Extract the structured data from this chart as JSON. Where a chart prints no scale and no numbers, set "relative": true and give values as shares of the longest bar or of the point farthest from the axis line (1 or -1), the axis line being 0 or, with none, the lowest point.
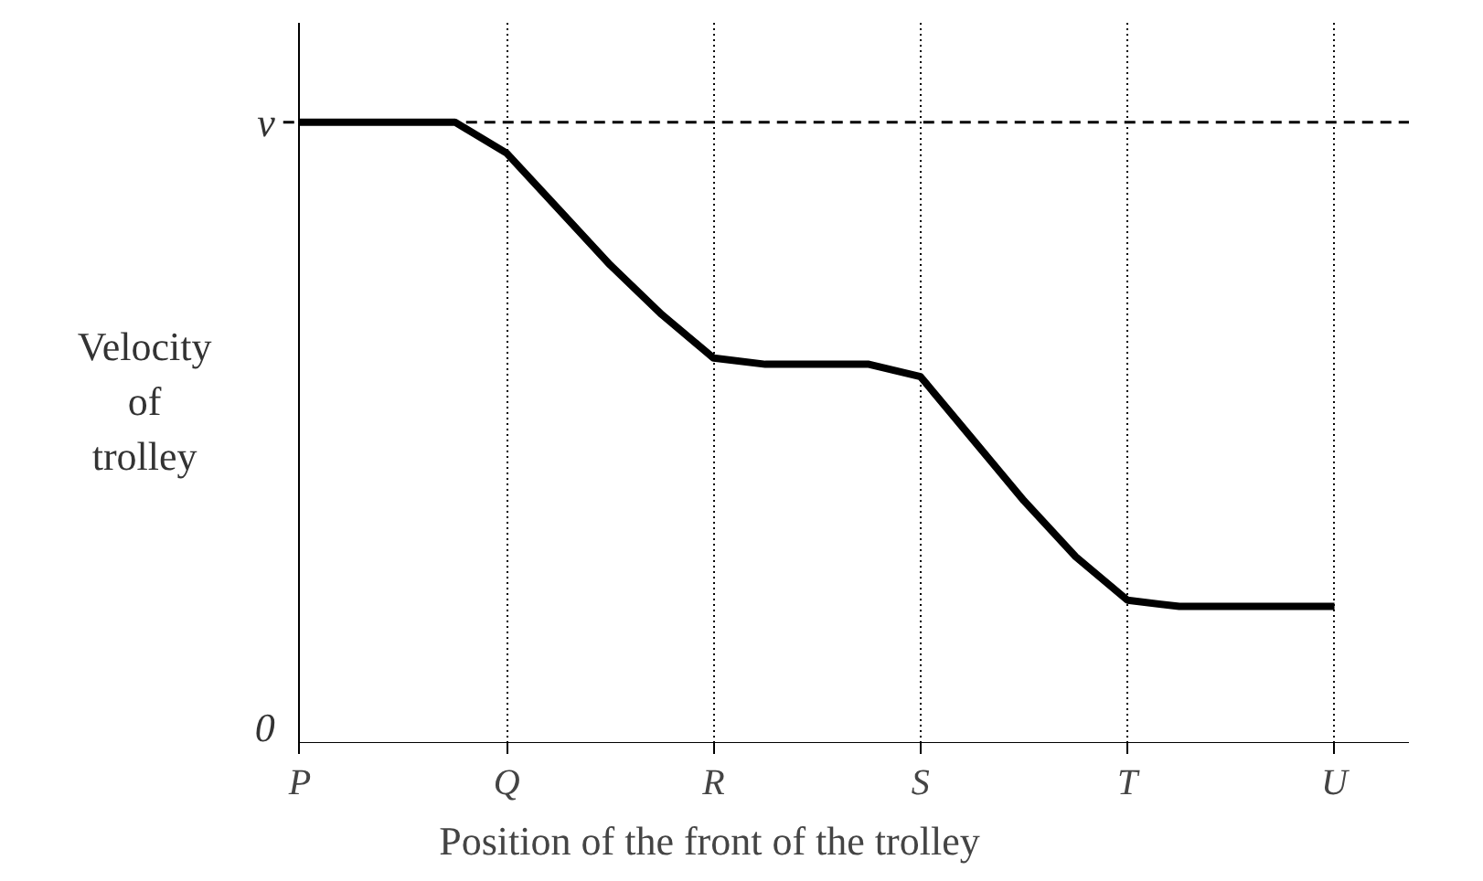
{
  "chart_data": {
    "type": "line",
    "relative": true,
    "xlabel": "Position of the front of the trolley",
    "ylabel": "Velocity of trolley",
    "categories": [
      "P",
      null,
      null,
      null,
      "Q",
      null,
      null,
      null,
      "R",
      null,
      null,
      null,
      "S",
      null,
      null,
      null,
      "T",
      null,
      null,
      null,
      "U"
    ],
    "series": [
      {
        "color": "#000000",
        "values": [
          1,
          1,
          1,
          1,
          0.95,
          0.86,
          0.77,
          0.69,
          0.62,
          0.61,
          0.61,
          0.61,
          0.59,
          0.49,
          0.39,
          0.3,
          0.23,
          0.22,
          0.22,
          0.22,
          0.22
        ]
      }
    ],
    "annotations": [
      "0"
    ],
    "grid": "x",
    "line_style": "solid",
    "ref_lines": [
      {
        "axis": "y",
        "value": 1,
        "label": "v",
        "line_style": "dashed",
        "color": "#000000"
      }
    ]
  }
}
